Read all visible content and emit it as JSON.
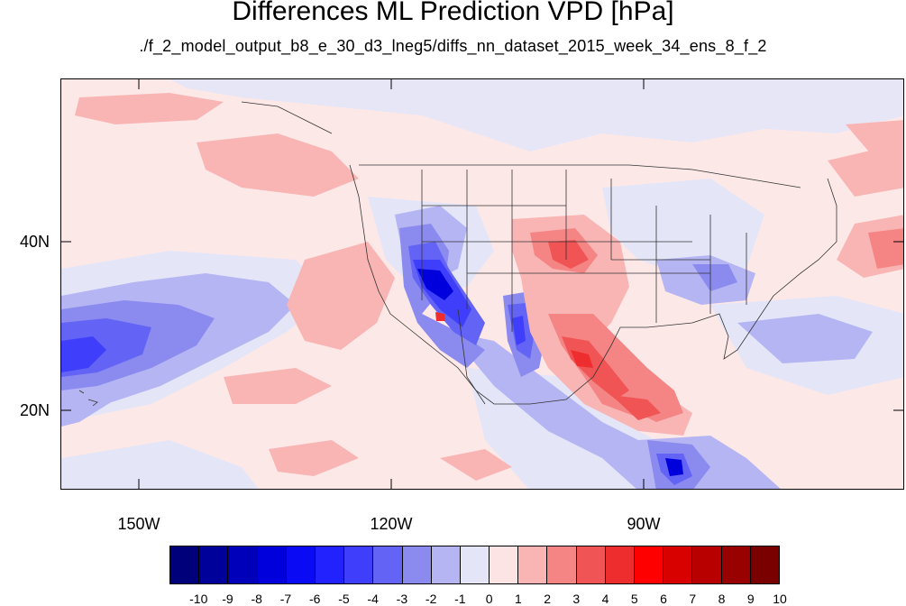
{
  "title": "Differences ML Prediction VPD [hPa]",
  "subtitle": "./f_2_model_output_b8_e_30_d3_lneg5/diffs_nn_dataset_2015_week_34_ens_8_f_2",
  "lat_labels": [
    "40N",
    "20N"
  ],
  "lon_labels": [
    "150W",
    "120W",
    "90W"
  ],
  "colorbar": {
    "levels": [
      "-10",
      "-9",
      "-8",
      "-7",
      "-6",
      "-5",
      "-4",
      "-3",
      "-2",
      "-1",
      "0",
      "1",
      "2",
      "3",
      "4",
      "5",
      "6",
      "7",
      "8",
      "9",
      "10"
    ],
    "colors": [
      "#00007a",
      "#00009a",
      "#0000bb",
      "#0000dd",
      "#0a0af5",
      "#2222ff",
      "#3f3ffb",
      "#6363f5",
      "#8a8aef",
      "#b5b5f3",
      "#e4e6f8",
      "#fde4e4",
      "#f9b4b4",
      "#f58585",
      "#f15454",
      "#ee2e2e",
      "#ff0000",
      "#d90000",
      "#b80000",
      "#990000",
      "#7a0000"
    ]
  },
  "colors": {
    "background": "#fde8e8",
    "light_blue": "#e4e6f8",
    "blue2": "#b5b5f3",
    "blue3": "#8a8aef",
    "blue4": "#6363f5",
    "blue5": "#3f3ffb",
    "blue6": "#2222ff",
    "blue7": "#0000dd",
    "red1": "#f9b4b4",
    "red2": "#f58585",
    "red3": "#f15454",
    "red4": "#ee2e2e"
  }
}
